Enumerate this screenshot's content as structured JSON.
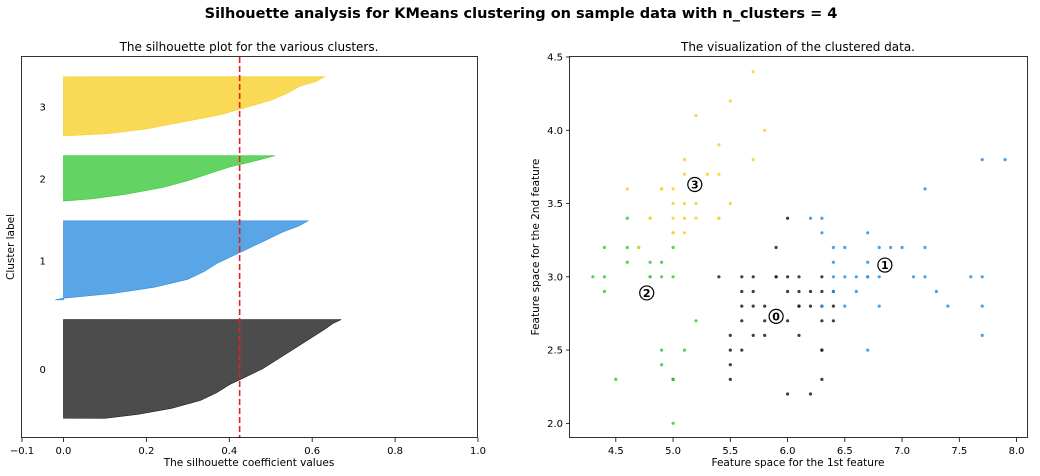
{
  "suptitle": "Silhouette analysis for KMeans clustering on sample data with n_clusters = 4",
  "colors": {
    "cluster_0": "#1f1f1f",
    "cluster_1": "#2f8fe0",
    "cluster_2": "#3cc93c",
    "cluster_3": "#f7d02a",
    "average_line": "#e8201c"
  },
  "chart_data": [
    {
      "type": "area",
      "title": "The silhouette plot for the various clusters.",
      "xlabel": "The silhouette coefficient values",
      "ylabel": "Cluster label",
      "xlim": [
        -0.1,
        1.0
      ],
      "xticks": [
        "−0.1",
        "0.0",
        "0.2",
        "0.4",
        "0.6",
        "0.8",
        "1.0"
      ],
      "xtick_values": [
        -0.1,
        0.0,
        0.2,
        0.4,
        0.6,
        0.8,
        1.0
      ],
      "grid": false,
      "average_silhouette": 0.425,
      "clusters": [
        {
          "label": "0",
          "color": "#1f1f1f",
          "size": 50,
          "profile": [
            [
              0,
              0.1
            ],
            [
              0.04,
              0.18
            ],
            [
              0.1,
              0.26
            ],
            [
              0.18,
              0.33
            ],
            [
              0.26,
              0.37
            ],
            [
              0.34,
              0.4
            ],
            [
              0.42,
              0.44
            ],
            [
              0.5,
              0.48
            ],
            [
              0.58,
              0.51
            ],
            [
              0.66,
              0.54
            ],
            [
              0.74,
              0.57
            ],
            [
              0.82,
              0.6
            ],
            [
              0.9,
              0.63
            ],
            [
              0.96,
              0.65
            ],
            [
              1.0,
              0.67
            ]
          ]
        },
        {
          "label": "1",
          "color": "#2f8fe0",
          "size": 40,
          "profile": [
            [
              0,
              -0.02
            ],
            [
              0.02,
              0.0
            ],
            [
              0.08,
              0.12
            ],
            [
              0.16,
              0.22
            ],
            [
              0.26,
              0.3
            ],
            [
              0.36,
              0.34
            ],
            [
              0.46,
              0.37
            ],
            [
              0.56,
              0.41
            ],
            [
              0.66,
              0.45
            ],
            [
              0.76,
              0.49
            ],
            [
              0.86,
              0.53
            ],
            [
              0.94,
              0.57
            ],
            [
              1.0,
              0.59
            ]
          ]
        },
        {
          "label": "2",
          "color": "#3cc93c",
          "size": 23,
          "profile": [
            [
              0,
              0.0
            ],
            [
              0.05,
              0.07
            ],
            [
              0.15,
              0.15
            ],
            [
              0.3,
              0.24
            ],
            [
              0.45,
              0.3
            ],
            [
              0.6,
              0.35
            ],
            [
              0.75,
              0.4
            ],
            [
              0.88,
              0.46
            ],
            [
              1.0,
              0.51
            ]
          ]
        },
        {
          "label": "3",
          "color": "#f7d02a",
          "size": 30,
          "profile": [
            [
              0,
              0.0
            ],
            [
              0.04,
              0.11
            ],
            [
              0.12,
              0.2
            ],
            [
              0.24,
              0.29
            ],
            [
              0.36,
              0.38
            ],
            [
              0.48,
              0.44
            ],
            [
              0.6,
              0.5
            ],
            [
              0.72,
              0.54
            ],
            [
              0.84,
              0.57
            ],
            [
              0.92,
              0.61
            ],
            [
              1.0,
              0.63
            ]
          ]
        }
      ]
    },
    {
      "type": "scatter",
      "title": "The visualization of the clustered data.",
      "xlabel": "Feature space for the 1st feature",
      "ylabel": "Feature space for the 2nd feature",
      "xlim": [
        4.1,
        8.1
      ],
      "ylim": [
        1.9,
        4.5
      ],
      "xticks": [
        4.5,
        5.0,
        5.5,
        6.0,
        6.5,
        7.0,
        7.5,
        8.0
      ],
      "yticks": [
        2.0,
        2.5,
        3.0,
        3.5,
        4.0,
        4.5
      ],
      "grid": false,
      "centers": [
        {
          "label": "0",
          "x": 5.9,
          "y": 2.73
        },
        {
          "label": "1",
          "x": 6.85,
          "y": 3.08
        },
        {
          "label": "2",
          "x": 4.77,
          "y": 2.89
        },
        {
          "label": "3",
          "x": 5.19,
          "y": 3.63
        }
      ],
      "series": [
        {
          "cluster": "0",
          "color": "#1f1f1f",
          "points": [
            [
              6.0,
              3.4
            ],
            [
              5.9,
              3.2
            ],
            [
              5.4,
              3.0
            ],
            [
              5.6,
              3.0
            ],
            [
              5.7,
              3.0
            ],
            [
              5.9,
              3.0
            ],
            [
              6.0,
              3.0
            ],
            [
              6.1,
              3.0
            ],
            [
              6.3,
              3.0
            ],
            [
              5.6,
              2.9
            ],
            [
              5.7,
              2.9
            ],
            [
              6.0,
              2.9
            ],
            [
              6.1,
              2.9
            ],
            [
              6.2,
              2.9
            ],
            [
              6.3,
              2.9
            ],
            [
              6.4,
              2.9
            ],
            [
              5.6,
              2.8
            ],
            [
              5.7,
              2.8
            ],
            [
              5.8,
              2.8
            ],
            [
              6.1,
              2.8
            ],
            [
              6.2,
              2.8
            ],
            [
              6.3,
              2.8
            ],
            [
              6.4,
              2.8
            ],
            [
              5.6,
              2.7
            ],
            [
              5.8,
              2.7
            ],
            [
              6.0,
              2.7
            ],
            [
              6.3,
              2.7
            ],
            [
              6.4,
              2.7
            ],
            [
              5.8,
              2.6
            ],
            [
              6.1,
              2.6
            ],
            [
              5.5,
              2.6
            ],
            [
              5.7,
              2.6
            ],
            [
              5.5,
              2.5
            ],
            [
              5.6,
              2.5
            ],
            [
              6.3,
              2.5
            ],
            [
              5.5,
              2.4
            ],
            [
              5.5,
              2.3
            ],
            [
              6.3,
              2.3
            ],
            [
              6.0,
              2.2
            ],
            [
              6.2,
              2.2
            ],
            [
              5.0,
              2.3
            ],
            [
              5.9,
              3.0
            ],
            [
              6.1,
              2.8
            ],
            [
              6.3,
              2.5
            ]
          ]
        },
        {
          "cluster": "1",
          "color": "#2f8fe0",
          "points": [
            [
              7.7,
              3.8
            ],
            [
              7.9,
              3.8
            ],
            [
              7.2,
              3.6
            ],
            [
              6.2,
              3.4
            ],
            [
              6.3,
              3.4
            ],
            [
              6.3,
              3.3
            ],
            [
              6.7,
              3.3
            ],
            [
              6.4,
              3.2
            ],
            [
              6.5,
              3.2
            ],
            [
              6.8,
              3.2
            ],
            [
              6.9,
              3.2
            ],
            [
              7.0,
              3.2
            ],
            [
              7.2,
              3.2
            ],
            [
              6.4,
              3.1
            ],
            [
              6.7,
              3.1
            ],
            [
              6.9,
              3.1
            ],
            [
              6.5,
              3.0
            ],
            [
              6.6,
              3.0
            ],
            [
              6.7,
              3.0
            ],
            [
              6.8,
              3.0
            ],
            [
              7.1,
              3.0
            ],
            [
              7.2,
              3.0
            ],
            [
              7.6,
              3.0
            ],
            [
              7.7,
              3.0
            ],
            [
              6.4,
              2.9
            ],
            [
              6.6,
              2.9
            ],
            [
              7.3,
              2.9
            ],
            [
              6.3,
              2.8
            ],
            [
              6.5,
              2.8
            ],
            [
              6.8,
              2.8
            ],
            [
              7.4,
              2.8
            ],
            [
              7.7,
              2.8
            ],
            [
              7.7,
              2.6
            ],
            [
              6.7,
              2.5
            ],
            [
              6.4,
              3.0
            ],
            [
              6.9,
              3.1
            ],
            [
              6.7,
              3.0
            ]
          ]
        },
        {
          "cluster": "2",
          "color": "#3cc93c",
          "points": [
            [
              4.6,
              3.4
            ],
            [
              4.4,
              3.2
            ],
            [
              4.6,
              3.2
            ],
            [
              4.7,
              3.2
            ],
            [
              5.0,
              3.2
            ],
            [
              4.6,
              3.1
            ],
            [
              4.8,
              3.1
            ],
            [
              4.9,
              3.1
            ],
            [
              4.3,
              3.0
            ],
            [
              4.4,
              3.0
            ],
            [
              4.8,
              3.0
            ],
            [
              4.9,
              3.0
            ],
            [
              5.0,
              3.0
            ],
            [
              4.4,
              2.9
            ],
            [
              4.8,
              3.0
            ],
            [
              5.2,
              2.7
            ],
            [
              4.9,
              2.5
            ],
            [
              5.1,
              2.5
            ],
            [
              4.9,
              2.4
            ],
            [
              4.5,
              2.3
            ],
            [
              5.0,
              2.3
            ],
            [
              5.0,
              2.0
            ]
          ]
        },
        {
          "cluster": "3",
          "color": "#f7d02a",
          "points": [
            [
              5.7,
              4.4
            ],
            [
              5.5,
              4.2
            ],
            [
              5.2,
              4.1
            ],
            [
              5.8,
              4.0
            ],
            [
              5.4,
              3.9
            ],
            [
              5.1,
              3.8
            ],
            [
              5.7,
              3.8
            ],
            [
              5.1,
              3.7
            ],
            [
              5.3,
              3.7
            ],
            [
              5.4,
              3.7
            ],
            [
              5.0,
              3.6
            ],
            [
              4.6,
              3.6
            ],
            [
              4.9,
              3.6
            ],
            [
              5.1,
              3.5
            ],
            [
              5.0,
              3.5
            ],
            [
              5.2,
              3.5
            ],
            [
              5.5,
              3.5
            ],
            [
              4.8,
              3.4
            ],
            [
              5.0,
              3.4
            ],
            [
              5.1,
              3.4
            ],
            [
              5.4,
              3.4
            ],
            [
              5.2,
              3.4
            ],
            [
              5.1,
              3.3
            ],
            [
              5.0,
              3.3
            ],
            [
              4.7,
              3.2
            ],
            [
              4.8,
              3.4
            ],
            [
              5.4,
              3.4
            ],
            [
              4.9,
              3.6
            ],
            [
              5.0,
              3.3
            ]
          ]
        }
      ]
    }
  ]
}
